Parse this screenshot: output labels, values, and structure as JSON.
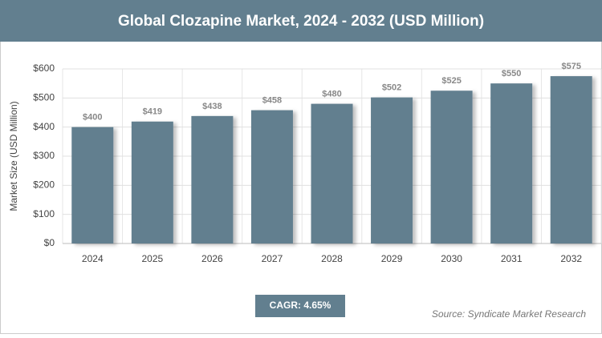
{
  "chart_data": {
    "type": "bar",
    "title": "Global Clozapine Market, 2024 - 2032 (USD Million)",
    "y_label": "Market Size (USD Million)",
    "categories": [
      "2024",
      "2025",
      "2026",
      "2027",
      "2028",
      "2029",
      "2030",
      "2031",
      "2032"
    ],
    "values": [
      400,
      419,
      438,
      458,
      480,
      502,
      525,
      550,
      575
    ],
    "value_labels": [
      "$400",
      "$419",
      "$438",
      "$458",
      "$480",
      "$502",
      "$525",
      "$550",
      "$575"
    ],
    "color": "#627f8f",
    "ylim": [
      0,
      600
    ],
    "yticks": [
      {
        "value": 0,
        "label": "$0"
      },
      {
        "value": 100,
        "label": "$100"
      },
      {
        "value": 200,
        "label": "$200"
      },
      {
        "value": 300,
        "label": "$300"
      },
      {
        "value": 400,
        "label": "$400"
      },
      {
        "value": 500,
        "label": "$500"
      },
      {
        "value": 600,
        "label": "$600"
      }
    ],
    "grid": true,
    "annotation": "CAGR: 4.65%",
    "source": "Source: Syndicate Market Research"
  }
}
